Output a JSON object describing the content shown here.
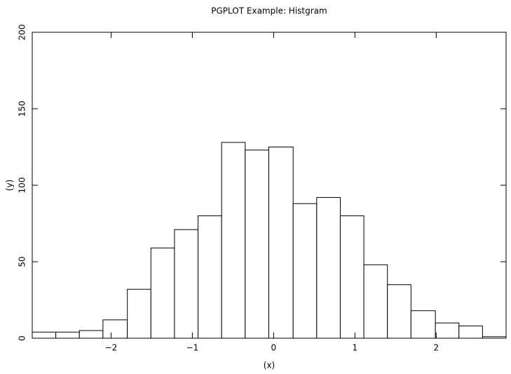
{
  "chart_data": {
    "type": "histogram",
    "title": "PGPLOT Example: Histgram",
    "xlabel": "(x)",
    "ylabel": "(y)",
    "bins": [
      -2.97,
      -2.68,
      -2.39,
      -2.1,
      -1.8,
      -1.51,
      -1.22,
      -0.93,
      -0.64,
      -0.35,
      -0.06,
      0.24,
      0.53,
      0.82,
      1.11,
      1.4,
      1.69,
      1.99,
      2.28,
      2.57,
      2.86
    ],
    "counts": [
      4,
      4,
      5,
      12,
      32,
      59,
      71,
      80,
      128,
      123,
      125,
      88,
      92,
      80,
      48,
      35,
      18,
      10,
      8,
      1
    ],
    "color": "#ffffff",
    "edgecolor": "#000000",
    "xlim": [
      -2.97,
      2.86
    ],
    "ylim": [
      0,
      200
    ],
    "xticks": [
      {
        "value": -2,
        "label": "−2"
      },
      {
        "value": -1,
        "label": "−1"
      },
      0,
      1,
      2
    ],
    "yticks": [
      0,
      50,
      100,
      150,
      200
    ]
  }
}
